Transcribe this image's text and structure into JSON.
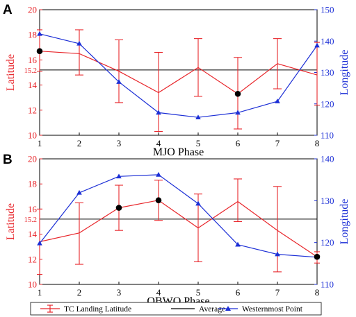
{
  "chart_data": [
    {
      "type": "line",
      "panel_label": "A",
      "xlabel": "MJO Phase",
      "ylabel_left": "Latitude",
      "ylabel_right": "Longitude",
      "x": [
        1,
        2,
        3,
        4,
        5,
        6,
        7,
        8
      ],
      "xlim": [
        1,
        8
      ],
      "ylim_left": [
        10,
        20
      ],
      "ylim_right": [
        110,
        150
      ],
      "yticks_left": [
        10,
        12,
        14,
        16,
        18,
        20
      ],
      "yticks_right": [
        110,
        120,
        130,
        140,
        150
      ],
      "average_label": "15.2",
      "average_value": 15.2,
      "latitude": {
        "values": [
          16.7,
          16.5,
          15.1,
          13.4,
          15.4,
          13.3,
          15.7,
          14.8
        ],
        "err_low": [
          15.1,
          14.8,
          12.6,
          10.3,
          13.1,
          10.5,
          13.7,
          12.4
        ],
        "err_high": [
          18.4,
          18.4,
          17.6,
          16.6,
          17.7,
          16.2,
          17.7,
          17.4
        ],
        "significant": [
          true,
          false,
          false,
          false,
          false,
          true,
          false,
          false
        ]
      },
      "longitude": {
        "values": [
          142.3,
          139.2,
          127.0,
          117.2,
          115.7,
          117.2,
          120.8,
          138.6
        ]
      }
    },
    {
      "type": "line",
      "panel_label": "B",
      "xlabel": "QBWO Phase",
      "ylabel_left": "Latitude",
      "ylabel_right": "Longitude",
      "x": [
        1,
        2,
        3,
        4,
        5,
        6,
        7,
        8
      ],
      "xlim": [
        1,
        8
      ],
      "ylim_left": [
        10,
        20
      ],
      "ylim_right": [
        110,
        140
      ],
      "yticks_left": [
        10,
        12,
        14,
        16,
        18,
        20
      ],
      "yticks_right": [
        110,
        120,
        130,
        140
      ],
      "average_label": "15.2",
      "average_value": 15.2,
      "latitude": {
        "values": [
          13.4,
          14.1,
          16.1,
          16.7,
          14.5,
          16.6,
          14.3,
          12.2
        ],
        "err_low": [
          10.8,
          11.6,
          14.3,
          15.1,
          11.8,
          15.0,
          11.0,
          11.7
        ],
        "err_high": [
          16.0,
          16.5,
          17.9,
          18.3,
          17.2,
          18.4,
          17.8,
          12.6
        ],
        "significant": [
          false,
          false,
          true,
          true,
          false,
          false,
          false,
          true
        ]
      },
      "longitude": {
        "values": [
          119.8,
          131.9,
          135.8,
          136.2,
          129.3,
          119.5,
          117.2,
          116.5
        ]
      }
    }
  ],
  "legend": {
    "items": [
      {
        "label": "TC Landing Latitude",
        "color": "#e8262b",
        "marker": "errorbar"
      },
      {
        "label": "Average",
        "color": "#000000",
        "marker": "line"
      },
      {
        "label": "Westernmost Point",
        "color": "#1c2fd6",
        "marker": "triangle"
      }
    ]
  },
  "colors": {
    "latitude": "#e8262b",
    "longitude": "#1c2fd6",
    "average": "#000000",
    "axis": "#000000"
  }
}
